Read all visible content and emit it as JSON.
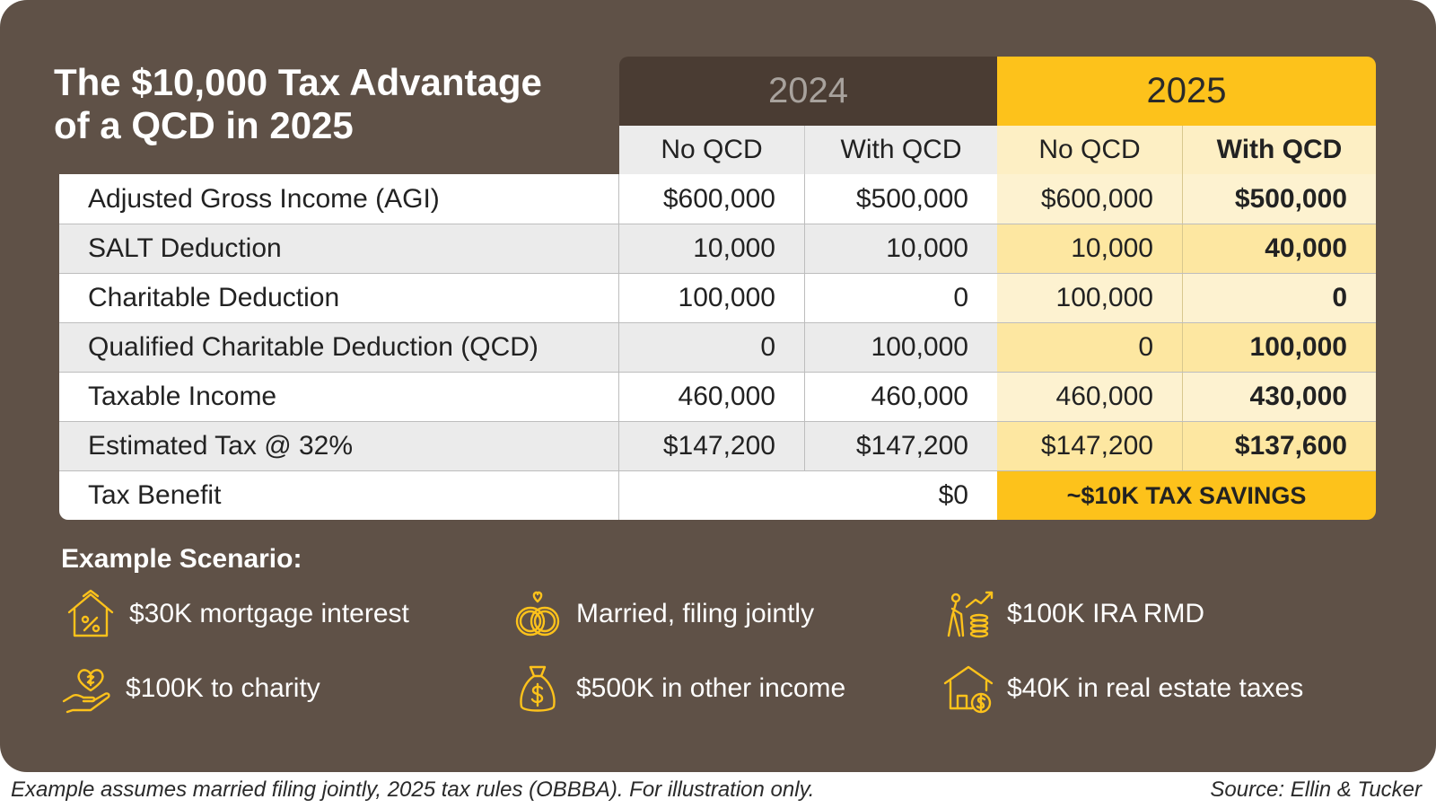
{
  "title_line1": "The $10,000 Tax Advantage",
  "title_line2": "of a QCD in 2025",
  "years": [
    "2024",
    "2025"
  ],
  "subheaders": [
    "No QCD",
    "With QCD",
    "No QCD",
    "With QCD"
  ],
  "rows": [
    {
      "label": "Adjusted Gross Income (AGI)",
      "values": [
        "$600,000",
        "$500,000",
        "$600,000",
        "$500,000"
      ]
    },
    {
      "label": "SALT Deduction",
      "values": [
        "10,000",
        "10,000",
        "10,000",
        "40,000"
      ]
    },
    {
      "label": "Charitable Deduction",
      "values": [
        "100,000",
        "0",
        "100,000",
        "0"
      ]
    },
    {
      "label": "Qualified Charitable Deduction (QCD)",
      "values": [
        "0",
        "100,000",
        "0",
        "100,000"
      ]
    },
    {
      "label": "Taxable Income",
      "values": [
        "460,000",
        "460,000",
        "460,000",
        "430,000"
      ]
    },
    {
      "label": "Estimated Tax @ 32%",
      "values": [
        "$147,200",
        "$147,200",
        "$147,200",
        "$137,600"
      ]
    }
  ],
  "benefit": {
    "label": "Tax Benefit",
    "value_2024": "$0",
    "value_2025": "~$10K TAX SAVINGS"
  },
  "scenario": {
    "title": "Example Scenario:",
    "items": [
      {
        "icon": "house-percent-icon",
        "text": "$30K mortgage interest"
      },
      {
        "icon": "rings-icon",
        "text": "Married, filing jointly"
      },
      {
        "icon": "retiree-coins-icon",
        "text": "$100K IRA RMD"
      },
      {
        "icon": "hand-heart-icon",
        "text": "$100K to charity"
      },
      {
        "icon": "money-bag-icon",
        "text": "$500K in other income"
      },
      {
        "icon": "house-dollar-icon",
        "text": "$40K in real estate taxes"
      }
    ]
  },
  "footnote": "Example assumes married filing jointly, 2025 tax rules (OBBBA). For illustration only.",
  "source": "Source: Ellin & Tucker",
  "colors": {
    "background": "#5f5147",
    "accent": "#fdc21b",
    "dark_header": "#4a3c33"
  }
}
